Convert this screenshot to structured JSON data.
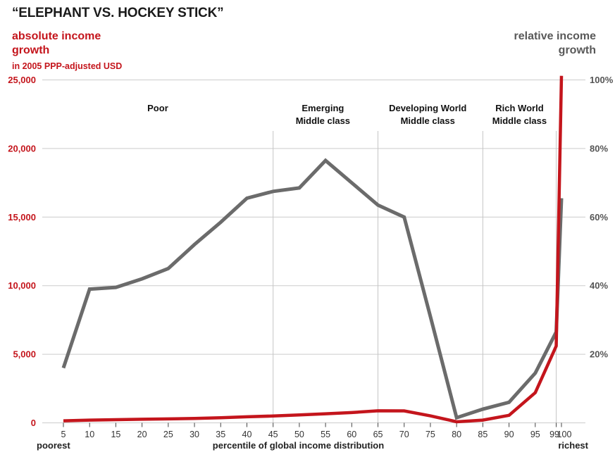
{
  "title": "“ELEPHANT VS. HOCKEY STICK”",
  "left_legend": {
    "title": "absolute income\ngrowth",
    "subtitle": "in 2005 PPP-adjusted USD"
  },
  "right_legend": {
    "title": "relative income\ngrowth"
  },
  "footer": {
    "left": "poorest",
    "center": "percentile of global income distribution",
    "right": "richest"
  },
  "colors": {
    "red": "#c4151c",
    "gray_line": "#6b6b6b",
    "grid": "#cccccc",
    "separator": "#c5c5c5",
    "tick": "#444444",
    "tick_text": "#333333",
    "category_text": "#111111",
    "right_axis_text": "#555555"
  },
  "chart_data": {
    "type": "line",
    "title": "Elephant vs. hockey stick: income growth by percentile of global income distribution",
    "xlabel": "percentile of global income distribution",
    "x": [
      5,
      10,
      15,
      20,
      25,
      30,
      35,
      40,
      45,
      50,
      55,
      60,
      65,
      70,
      75,
      80,
      85,
      90,
      95,
      99,
      100
    ],
    "x_ticks": [
      5,
      10,
      15,
      20,
      25,
      30,
      35,
      40,
      45,
      50,
      55,
      60,
      65,
      70,
      75,
      80,
      85,
      90,
      95,
      99,
      100
    ],
    "left_axis": {
      "title": "absolute income growth in 2005 PPP-adjusted USD",
      "max": 25000,
      "ticks": [
        0,
        5000,
        10000,
        15000,
        20000,
        25000
      ],
      "labels": [
        "0",
        "5,000",
        "10,000",
        "15,000",
        "20,000",
        "25,000"
      ]
    },
    "right_axis": {
      "title": "relative income growth",
      "max": 100,
      "ticks": [
        20,
        40,
        60,
        80,
        100
      ],
      "labels": [
        "20%",
        "40%",
        "60%",
        "80%",
        "100%"
      ]
    },
    "series": [
      {
        "id": "relative",
        "name": "relative income growth",
        "axis": "right",
        "color": "#6b6b6b",
        "width": 5,
        "values": [
          16,
          39,
          39.5,
          42,
          45,
          52,
          58.5,
          65.5,
          67.5,
          68.5,
          76.5,
          70,
          63.5,
          60,
          31,
          1.5,
          4,
          6,
          14.5,
          26.5,
          65.5
        ]
      },
      {
        "id": "absolute",
        "name": "absolute income growth",
        "axis": "left",
        "color": "#c4151c",
        "width": 4.5,
        "values": [
          150,
          200,
          230,
          260,
          290,
          320,
          370,
          440,
          500,
          580,
          660,
          750,
          880,
          870,
          510,
          80,
          200,
          550,
          2200,
          5600,
          25300
        ]
      }
    ],
    "separator_percentiles": [
      45,
      65,
      85,
      99
    ],
    "annotations": [
      {
        "lines": [
          "Poor"
        ],
        "center_percentile": 23
      },
      {
        "lines": [
          "Emerging",
          "Middle class"
        ],
        "center_percentile": 54.5
      },
      {
        "lines": [
          "Developing World",
          "Middle class"
        ],
        "center_percentile": 74.5
      },
      {
        "lines": [
          "Rich World",
          "Middle class"
        ],
        "center_percentile": 92
      },
      {
        "lines": [
          "poorest"
        ],
        "center_percentile": 5
      },
      {
        "lines": [
          "richest"
        ],
        "center_percentile": 100
      }
    ],
    "grid": true,
    "legend_position": "top-corners"
  }
}
